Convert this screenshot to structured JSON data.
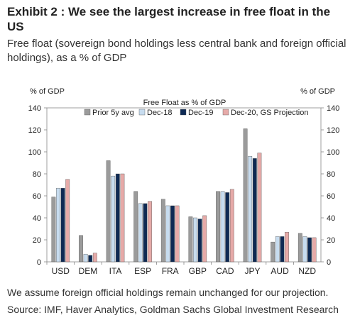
{
  "header": {
    "title": "Exhibit 2 : We see the largest increase in free float in the US",
    "subtitle": "Free float (sovereign bond holdings less central bank and foreign official holdings), as a % of GDP"
  },
  "footer": {
    "note": "We assume foreign official holdings remain unchanged for our projection.",
    "source": "Source: IMF, Haver Analytics, Goldman Sachs Global Investment Research"
  },
  "chart_data": {
    "type": "bar",
    "title": "Free Float as % of GDP",
    "ylabel_left": "% of GDP",
    "ylabel_right": "% of GDP",
    "ylim": [
      0,
      140
    ],
    "yticks": [
      0,
      20,
      40,
      60,
      80,
      100,
      120,
      140
    ],
    "legend_position": "top",
    "categories": [
      "USD",
      "DEM",
      "ITA",
      "ESP",
      "FRA",
      "GBP",
      "CAD",
      "JPY",
      "AUD",
      "NZD"
    ],
    "series": [
      {
        "name": "Prior 5y avg",
        "color": "#9b9b9b",
        "values": [
          59,
          24,
          92,
          64,
          57,
          41,
          64,
          121,
          18,
          26
        ]
      },
      {
        "name": "Dec-18",
        "color": "#c7dcef",
        "values": [
          67,
          7,
          78,
          53,
          51,
          40,
          64,
          96,
          23,
          23
        ]
      },
      {
        "name": "Dec-19",
        "color": "#0e2a54",
        "values": [
          67,
          6,
          80,
          53,
          51,
          39,
          63,
          94,
          23,
          22
        ]
      },
      {
        "name": "Dec-20, GS Projection",
        "color": "#e6aaa8",
        "values": [
          75,
          8,
          80,
          55,
          51,
          42,
          66,
          99,
          27,
          22
        ]
      }
    ]
  }
}
